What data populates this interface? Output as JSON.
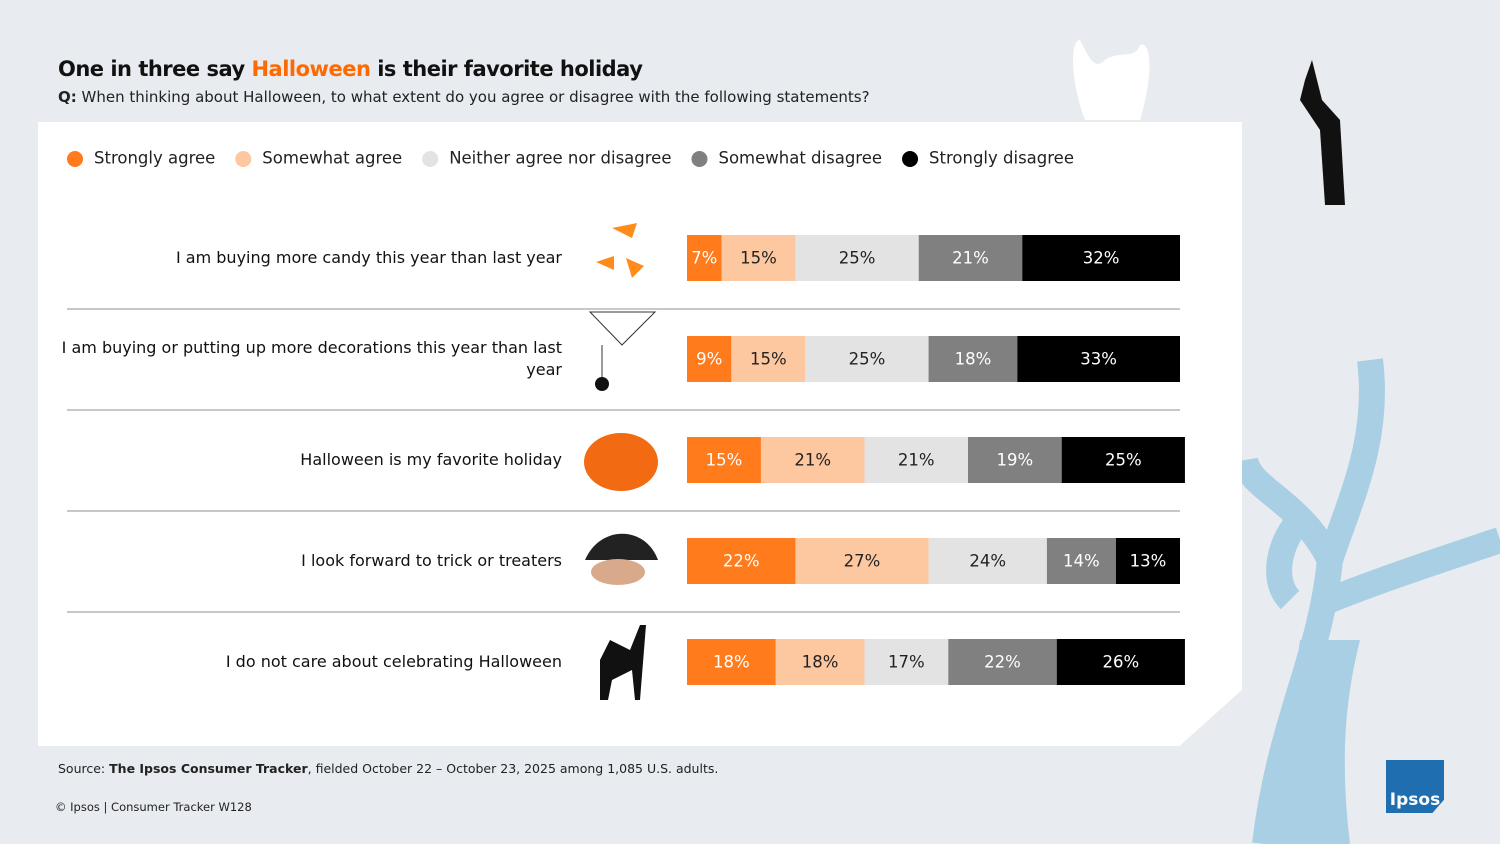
{
  "chart_data": {
    "type": "bar",
    "orientation": "horizontal",
    "stacked": true,
    "title": [
      "One in three say ",
      "Halloween",
      " is their favorite holiday"
    ],
    "subtitle": [
      "Q:",
      "When thinking about Halloween, to what extent do you agree or disagree with the following statements?"
    ],
    "categories": [
      "I am buying more candy this year than last year",
      "I am buying or putting up more decorations this year than last year",
      "Halloween is my favorite holiday",
      "I look forward to trick or treaters",
      "I do not care about celebrating Halloween"
    ],
    "series": [
      {
        "name": "Strongly agree",
        "color": "#ff7b1c",
        "values": [
          7,
          9,
          15,
          22,
          18
        ],
        "value_labels": [
          "7%",
          "9%",
          "15%",
          "22%",
          "18%"
        ]
      },
      {
        "name": "Somewhat agree",
        "color": "#fdc7a0",
        "values": [
          15,
          15,
          21,
          27,
          18
        ],
        "value_labels": [
          "15%",
          "15%",
          "21%",
          "27%",
          "18%"
        ]
      },
      {
        "name": "Neither agree nor disagree",
        "color": "#e3e3e3",
        "values": [
          25,
          25,
          21,
          24,
          17
        ],
        "value_labels": [
          "25%",
          "25%",
          "21%",
          "24%",
          "17%"
        ]
      },
      {
        "name": "Somewhat disagree",
        "color": "#808080",
        "values": [
          21,
          18,
          19,
          14,
          22
        ],
        "value_labels": [
          "21%",
          "18%",
          "19%",
          "14%",
          "22%"
        ]
      },
      {
        "name": "Strongly disagree",
        "color": "#000000",
        "values": [
          32,
          33,
          25,
          13,
          26
        ],
        "value_labels": [
          "32%",
          "33%",
          "25%",
          "13%",
          "26%"
        ]
      }
    ],
    "xlim": [
      0,
      100
    ]
  },
  "source": [
    "Source:",
    "The Ipsos Consumer Tracker",
    ", fielded October 22 – October 23, 2025 among 1,085 U.S. adults."
  ],
  "footer": "© Ipsos | Consumer Tracker W128",
  "logo": "Ipsos"
}
